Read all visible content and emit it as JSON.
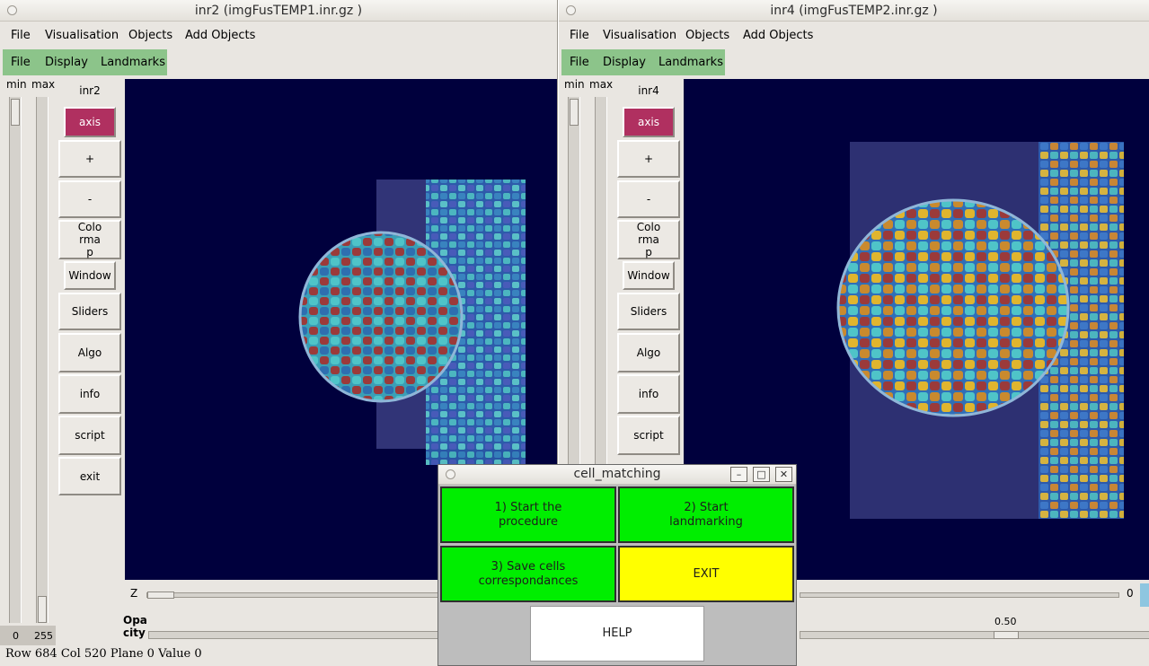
{
  "windows": [
    {
      "title": "inr2 (imgFusTEMP1.inr.gz  )",
      "menu": [
        "File",
        "Visualisation",
        "Objects",
        "Add Objects"
      ],
      "submenu": [
        "File",
        "Display",
        "Landmarks"
      ],
      "slider_labels": {
        "min": "min",
        "max": "max"
      },
      "slider_values": {
        "min": "0",
        "max": "255"
      },
      "panel_label": "inr2",
      "buttons": [
        "axis",
        "+",
        "-",
        "Colo\nrma\np",
        "Window",
        "Sliders",
        "Algo",
        "info",
        "script",
        "exit"
      ],
      "z_label": "Z",
      "opacity_label": "Opa\ncity",
      "status": "Row 684 Col 520 Plane   0 Value   0"
    },
    {
      "title": "inr4 (imgFusTEMP2.inr.gz  )",
      "menu": [
        "File",
        "Visualisation",
        "Objects",
        "Add Objects"
      ],
      "submenu": [
        "File",
        "Display",
        "Landmarks"
      ],
      "slider_labels": {
        "min": "min",
        "max": "max"
      },
      "panel_label": "inr4",
      "buttons": [
        "axis",
        "+",
        "-",
        "Colo\nrma\np",
        "Window",
        "Sliders",
        "Algo",
        "info",
        "script"
      ],
      "z_value": "0",
      "opacity_value": "0.50"
    }
  ],
  "dialog": {
    "title": "cell_matching",
    "window_controls": [
      "–",
      "□",
      "✕"
    ],
    "buttons": {
      "start_procedure": "1) Start the\nprocedure",
      "start_landmarking": "2) Start\nlandmarking",
      "save_correspondances": "3) Save cells\ncorrespondances",
      "exit": "EXIT",
      "help": "HELP"
    }
  },
  "colors": {
    "viewer_bg": "#00003d",
    "axis_button": "#b03060",
    "green_button": "#00ee00",
    "yellow_button": "#ffff00",
    "submenu_bar": "#8cc48a"
  }
}
